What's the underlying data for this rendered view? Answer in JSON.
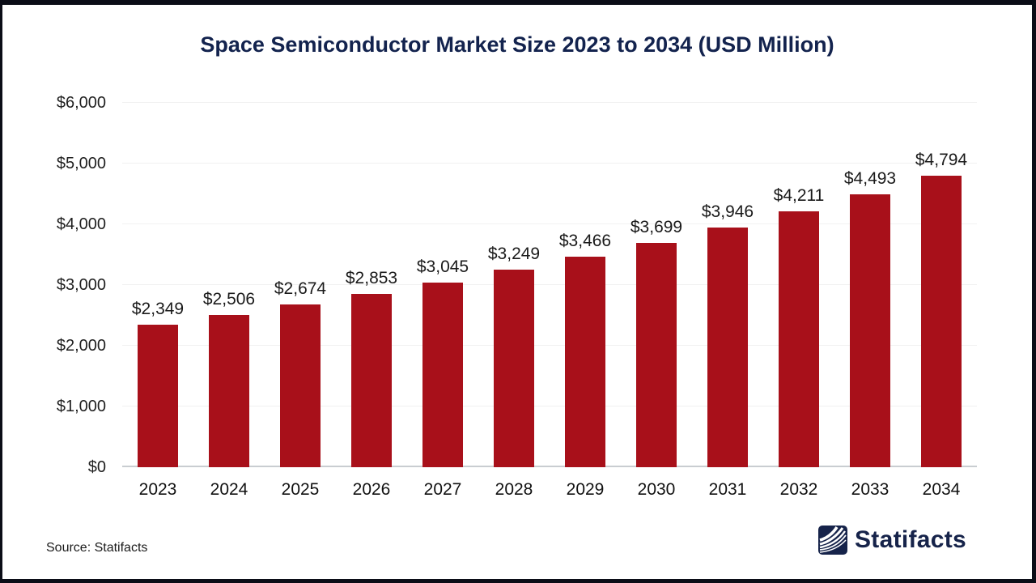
{
  "chart_data": {
    "type": "bar",
    "title": "Space Semiconductor Market Size 2023 to 2034 (USD Million)",
    "categories": [
      "2023",
      "2024",
      "2025",
      "2026",
      "2027",
      "2028",
      "2029",
      "2030",
      "2031",
      "2032",
      "2033",
      "2034"
    ],
    "values": [
      2349,
      2506,
      2674,
      2853,
      3045,
      3249,
      3466,
      3699,
      3946,
      4211,
      4493,
      4794
    ],
    "value_labels": [
      "$2,349",
      "$2,506",
      "$2,674",
      "$2,853",
      "$3,045",
      "$3,249",
      "$3,466",
      "$3,699",
      "$3,946",
      "$4,211",
      "$4,493",
      "$4,794"
    ],
    "xlabel": "",
    "ylabel": "",
    "ylim": [
      0,
      6000
    ],
    "yticks": [
      0,
      1000,
      2000,
      3000,
      4000,
      5000,
      6000
    ],
    "ytick_labels": [
      "$0",
      "$1,000",
      "$2,000",
      "$3,000",
      "$4,000",
      "$5,000",
      "$6,000"
    ],
    "grid": true,
    "legend_position": "none"
  },
  "footer": {
    "source": "Source: Statifacts",
    "brand_name": "Statifacts"
  },
  "colors": {
    "bar": "#A8101A",
    "title": "#13234E",
    "brand_navy": "#16234A",
    "frame_border": "#0B0D17",
    "gridline": "#F1F1F1",
    "axis_line": "#C9CDD1",
    "label_text": "#1A1A1A"
  }
}
